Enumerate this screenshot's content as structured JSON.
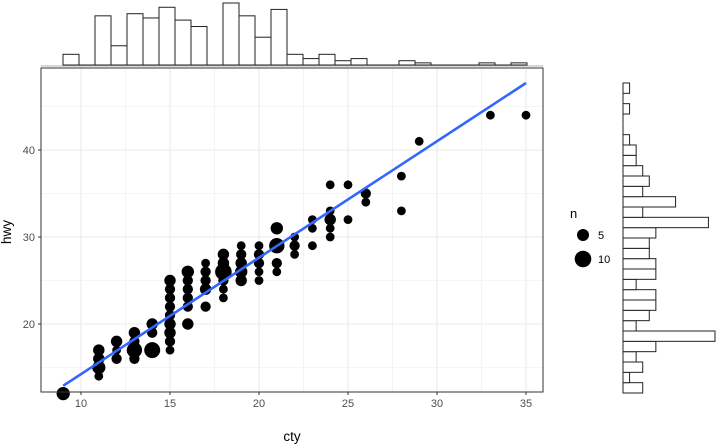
{
  "chart_data": {
    "type": "scatter",
    "title": "",
    "xlabel": "cty",
    "ylabel": "hwy",
    "xlim": [
      7.8,
      36.6
    ],
    "ylim": [
      10.4,
      49.6
    ],
    "x_ticks": [
      10,
      15,
      20,
      25,
      30,
      35
    ],
    "y_ticks": [
      20,
      30,
      40
    ],
    "grid": true,
    "legend": {
      "title": "n",
      "position": "right",
      "entries": [
        {
          "label": "5",
          "size": 5
        },
        {
          "label": "10",
          "size": 10
        }
      ]
    },
    "fit_line": {
      "color": "#3366FF",
      "x": [
        9,
        35
      ],
      "y": [
        12.9,
        47.7
      ]
    },
    "points": [
      {
        "x": 9,
        "y": 12,
        "n": 5
      },
      {
        "x": 11,
        "y": 14,
        "n": 1
      },
      {
        "x": 11,
        "y": 15,
        "n": 5
      },
      {
        "x": 11,
        "y": 16,
        "n": 3
      },
      {
        "x": 11,
        "y": 17,
        "n": 3
      },
      {
        "x": 12,
        "y": 16,
        "n": 2
      },
      {
        "x": 12,
        "y": 17,
        "n": 1
      },
      {
        "x": 12,
        "y": 18,
        "n": 3
      },
      {
        "x": 13,
        "y": 16,
        "n": 2
      },
      {
        "x": 13,
        "y": 17,
        "n": 8
      },
      {
        "x": 13,
        "y": 18,
        "n": 2
      },
      {
        "x": 13,
        "y": 19,
        "n": 3
      },
      {
        "x": 14,
        "y": 17,
        "n": 9
      },
      {
        "x": 14,
        "y": 19,
        "n": 2
      },
      {
        "x": 14,
        "y": 20,
        "n": 3
      },
      {
        "x": 15,
        "y": 17,
        "n": 1
      },
      {
        "x": 15,
        "y": 18,
        "n": 2
      },
      {
        "x": 15,
        "y": 19,
        "n": 3
      },
      {
        "x": 15,
        "y": 20,
        "n": 3
      },
      {
        "x": 15,
        "y": 21,
        "n": 2
      },
      {
        "x": 15,
        "y": 22,
        "n": 2
      },
      {
        "x": 15,
        "y": 23,
        "n": 2
      },
      {
        "x": 15,
        "y": 24,
        "n": 2
      },
      {
        "x": 15,
        "y": 25,
        "n": 3
      },
      {
        "x": 16,
        "y": 20,
        "n": 3
      },
      {
        "x": 16,
        "y": 22,
        "n": 2
      },
      {
        "x": 16,
        "y": 23,
        "n": 2
      },
      {
        "x": 16,
        "y": 24,
        "n": 2
      },
      {
        "x": 16,
        "y": 25,
        "n": 2
      },
      {
        "x": 16,
        "y": 26,
        "n": 4
      },
      {
        "x": 17,
        "y": 22,
        "n": 2
      },
      {
        "x": 17,
        "y": 24,
        "n": 3
      },
      {
        "x": 17,
        "y": 25,
        "n": 2
      },
      {
        "x": 17,
        "y": 26,
        "n": 2
      },
      {
        "x": 17,
        "y": 27,
        "n": 1
      },
      {
        "x": 18,
        "y": 23,
        "n": 1
      },
      {
        "x": 18,
        "y": 24,
        "n": 1
      },
      {
        "x": 18,
        "y": 25,
        "n": 2
      },
      {
        "x": 18,
        "y": 26,
        "n": 10
      },
      {
        "x": 18,
        "y": 27,
        "n": 3
      },
      {
        "x": 18,
        "y": 28,
        "n": 3
      },
      {
        "x": 19,
        "y": 25,
        "n": 3
      },
      {
        "x": 19,
        "y": 26,
        "n": 4
      },
      {
        "x": 19,
        "y": 27,
        "n": 3
      },
      {
        "x": 19,
        "y": 28,
        "n": 2
      },
      {
        "x": 19,
        "y": 29,
        "n": 1
      },
      {
        "x": 20,
        "y": 25,
        "n": 1
      },
      {
        "x": 20,
        "y": 26,
        "n": 1
      },
      {
        "x": 20,
        "y": 27,
        "n": 2
      },
      {
        "x": 20,
        "y": 28,
        "n": 2
      },
      {
        "x": 20,
        "y": 29,
        "n": 1
      },
      {
        "x": 21,
        "y": 26,
        "n": 1
      },
      {
        "x": 21,
        "y": 27,
        "n": 2
      },
      {
        "x": 21,
        "y": 29,
        "n": 8
      },
      {
        "x": 21,
        "y": 31,
        "n": 4
      },
      {
        "x": 22,
        "y": 28,
        "n": 1
      },
      {
        "x": 22,
        "y": 29,
        "n": 2
      },
      {
        "x": 22,
        "y": 30,
        "n": 1
      },
      {
        "x": 23,
        "y": 29,
        "n": 1
      },
      {
        "x": 23,
        "y": 31,
        "n": 1
      },
      {
        "x": 23,
        "y": 32,
        "n": 1
      },
      {
        "x": 24,
        "y": 30,
        "n": 1
      },
      {
        "x": 24,
        "y": 31,
        "n": 1
      },
      {
        "x": 24,
        "y": 32,
        "n": 3
      },
      {
        "x": 24,
        "y": 33,
        "n": 1
      },
      {
        "x": 24,
        "y": 36,
        "n": 1
      },
      {
        "x": 25,
        "y": 32,
        "n": 1
      },
      {
        "x": 25,
        "y": 36,
        "n": 1
      },
      {
        "x": 26,
        "y": 34,
        "n": 1
      },
      {
        "x": 26,
        "y": 35,
        "n": 2
      },
      {
        "x": 28,
        "y": 33,
        "n": 1
      },
      {
        "x": 28,
        "y": 37,
        "n": 1
      },
      {
        "x": 29,
        "y": 41,
        "n": 1
      },
      {
        "x": 33,
        "y": 44,
        "n": 1
      },
      {
        "x": 35,
        "y": 44,
        "n": 1
      }
    ],
    "marginal_x_histogram": {
      "bin_width": 0.9,
      "bin_start": 9,
      "counts": [
        5,
        0,
        23,
        9,
        24,
        22,
        27,
        21,
        18,
        0,
        29,
        23,
        13,
        26,
        5,
        3,
        5,
        2,
        3,
        0,
        0,
        2,
        1,
        0,
        0,
        0,
        1,
        0,
        1
      ]
    },
    "marginal_y_histogram": {
      "bin_width": 1.1,
      "bin_start": 12,
      "counts": [
        3,
        1,
        3,
        2,
        5,
        14,
        2,
        4,
        5,
        5,
        2,
        5,
        5,
        4,
        4,
        5,
        13,
        3,
        8,
        3,
        4,
        3,
        2,
        2,
        1,
        0,
        0,
        1,
        0,
        1
      ]
    }
  }
}
